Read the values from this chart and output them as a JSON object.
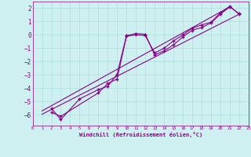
{
  "background_color": "#cff0f0",
  "grid_color": "#aadddd",
  "line_color": "#880088",
  "xlabel": "Windchill (Refroidissement éolien,°C)",
  "xlim": [
    0,
    23
  ],
  "ylim": [
    -6.8,
    2.5
  ],
  "yticks": [
    -6,
    -5,
    -4,
    -3,
    -2,
    -1,
    0,
    1,
    2
  ],
  "xticks": [
    0,
    1,
    2,
    3,
    4,
    5,
    6,
    7,
    8,
    9,
    10,
    11,
    12,
    13,
    14,
    15,
    16,
    17,
    18,
    19,
    20,
    21,
    22,
    23
  ],
  "line1_x": [
    2,
    3,
    5,
    7,
    8,
    9,
    10,
    11,
    12,
    13,
    14,
    15,
    16,
    17,
    18,
    19,
    20,
    21,
    22
  ],
  "line1_y": [
    -5.5,
    -6.35,
    -4.8,
    -4.1,
    -3.85,
    -2.95,
    -0.05,
    0.1,
    0.05,
    -1.5,
    -1.2,
    -0.75,
    -0.15,
    0.35,
    0.55,
    0.9,
    1.55,
    2.1,
    1.6
  ],
  "line2_x": [
    2,
    3,
    7,
    8,
    9,
    10,
    11,
    12,
    13,
    14,
    15,
    16,
    17,
    18,
    19,
    20,
    21,
    22
  ],
  "line2_y": [
    -5.8,
    -6.1,
    -4.35,
    -3.65,
    -3.3,
    -0.1,
    0.0,
    -0.05,
    -1.35,
    -1.0,
    -0.45,
    -0.0,
    0.5,
    0.75,
    0.95,
    1.65,
    2.15,
    1.55
  ],
  "line3_x": [
    1,
    22
  ],
  "line3_y": [
    -5.95,
    1.55
  ],
  "line4_x": [
    1,
    21
  ],
  "line4_y": [
    -5.7,
    2.1
  ]
}
